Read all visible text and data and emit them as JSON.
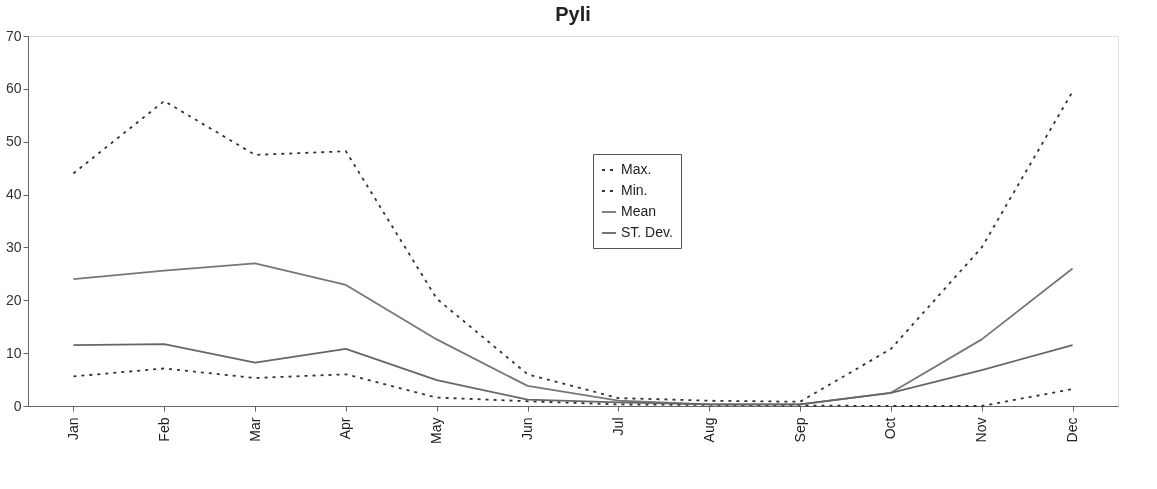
{
  "chart_data": {
    "type": "line",
    "title": "Pyli",
    "categories": [
      "Jan",
      "Feb",
      "Mar",
      "Apr",
      "May",
      "Jun",
      "Jul",
      "Aug",
      "Sep",
      "Oct",
      "Nov",
      "Dec"
    ],
    "series": [
      {
        "name": "Max.",
        "color": "#333333",
        "line_style": "dotted",
        "values": [
          44,
          57.7,
          47.5,
          48.2,
          20.3,
          6,
          1.5,
          1,
          0.8,
          10.8,
          30,
          59.5
        ]
      },
      {
        "name": "Min.",
        "color": "#333333",
        "line_style": "dotted",
        "values": [
          5.6,
          7.1,
          5.3,
          6,
          1.6,
          0.9,
          0.3,
          0.2,
          0.1,
          0,
          0,
          3.2
        ]
      },
      {
        "name": "Mean",
        "color": "#777777",
        "line_style": "solid",
        "values": [
          24,
          25.6,
          27,
          22.9,
          12.6,
          3.8,
          1,
          0.3,
          0.3,
          2.5,
          12.6,
          26
        ]
      },
      {
        "name": "ST. Dev.",
        "color": "#666666",
        "line_style": "solid",
        "values": [
          11.5,
          11.7,
          8.2,
          10.8,
          4.9,
          1.2,
          0.7,
          0.3,
          0.3,
          2.5,
          6.8,
          11.5
        ]
      }
    ],
    "ylim": [
      0,
      70
    ],
    "yticks": [
      0,
      10,
      20,
      30,
      40,
      50,
      60,
      70
    ],
    "grid": false,
    "legend": "top",
    "marker": "none"
  }
}
